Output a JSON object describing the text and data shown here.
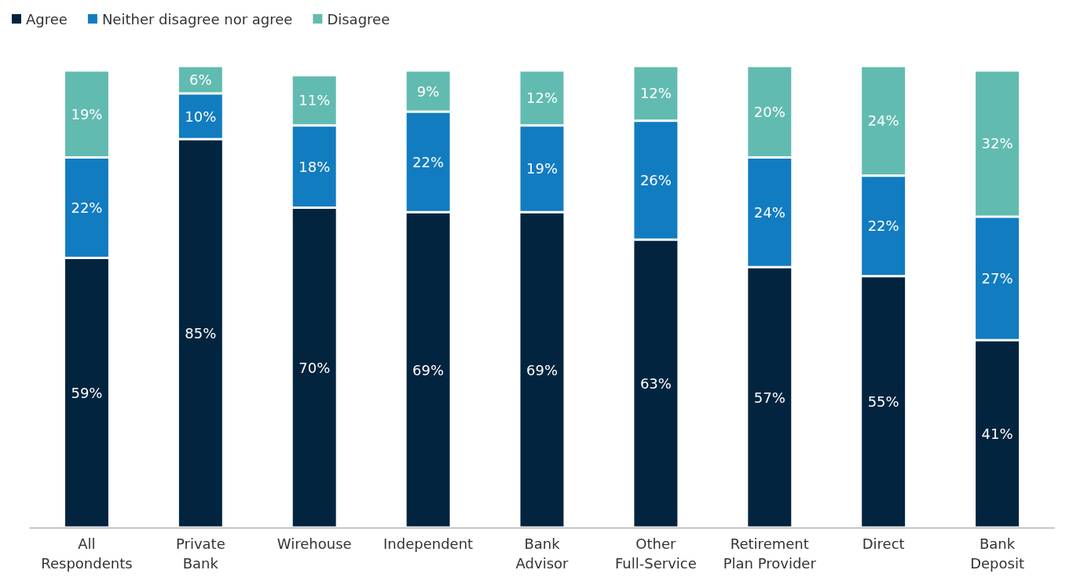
{
  "chart_data": {
    "type": "bar",
    "stacked": true,
    "legend": "top left",
    "categories": [
      "All\nRespondents",
      "Private\nBank",
      "Wirehouse",
      "Independent",
      "Bank\nAdvisor",
      "Other\nFull-Service",
      "Retirement\nPlan Provider",
      "Direct",
      "Bank\nDeposit"
    ],
    "series": [
      {
        "name": "Agree",
        "color": "#03243f",
        "values": [
          59,
          85,
          70,
          69,
          69,
          63,
          57,
          55,
          41
        ],
        "value_labels": [
          "59%",
          "85%",
          "70%",
          "69%",
          "69%",
          "63%",
          "57%",
          "55%",
          "41%"
        ]
      },
      {
        "name": "Neither disagree nor agree",
        "color": "#127cc1",
        "values": [
          22,
          10,
          18,
          22,
          19,
          26,
          24,
          22,
          27
        ],
        "value_labels": [
          "22%",
          "10%",
          "18%",
          "22%",
          "19%",
          "26%",
          "24%",
          "22%",
          "27%"
        ]
      },
      {
        "name": "Disagree",
        "color": "#62bbb0",
        "values": [
          19,
          6,
          11,
          9,
          12,
          12,
          20,
          24,
          32
        ],
        "value_labels": [
          "19%",
          "6%",
          "11%",
          "9%",
          "12%",
          "12%",
          "20%",
          "24%",
          "32%"
        ]
      }
    ]
  }
}
